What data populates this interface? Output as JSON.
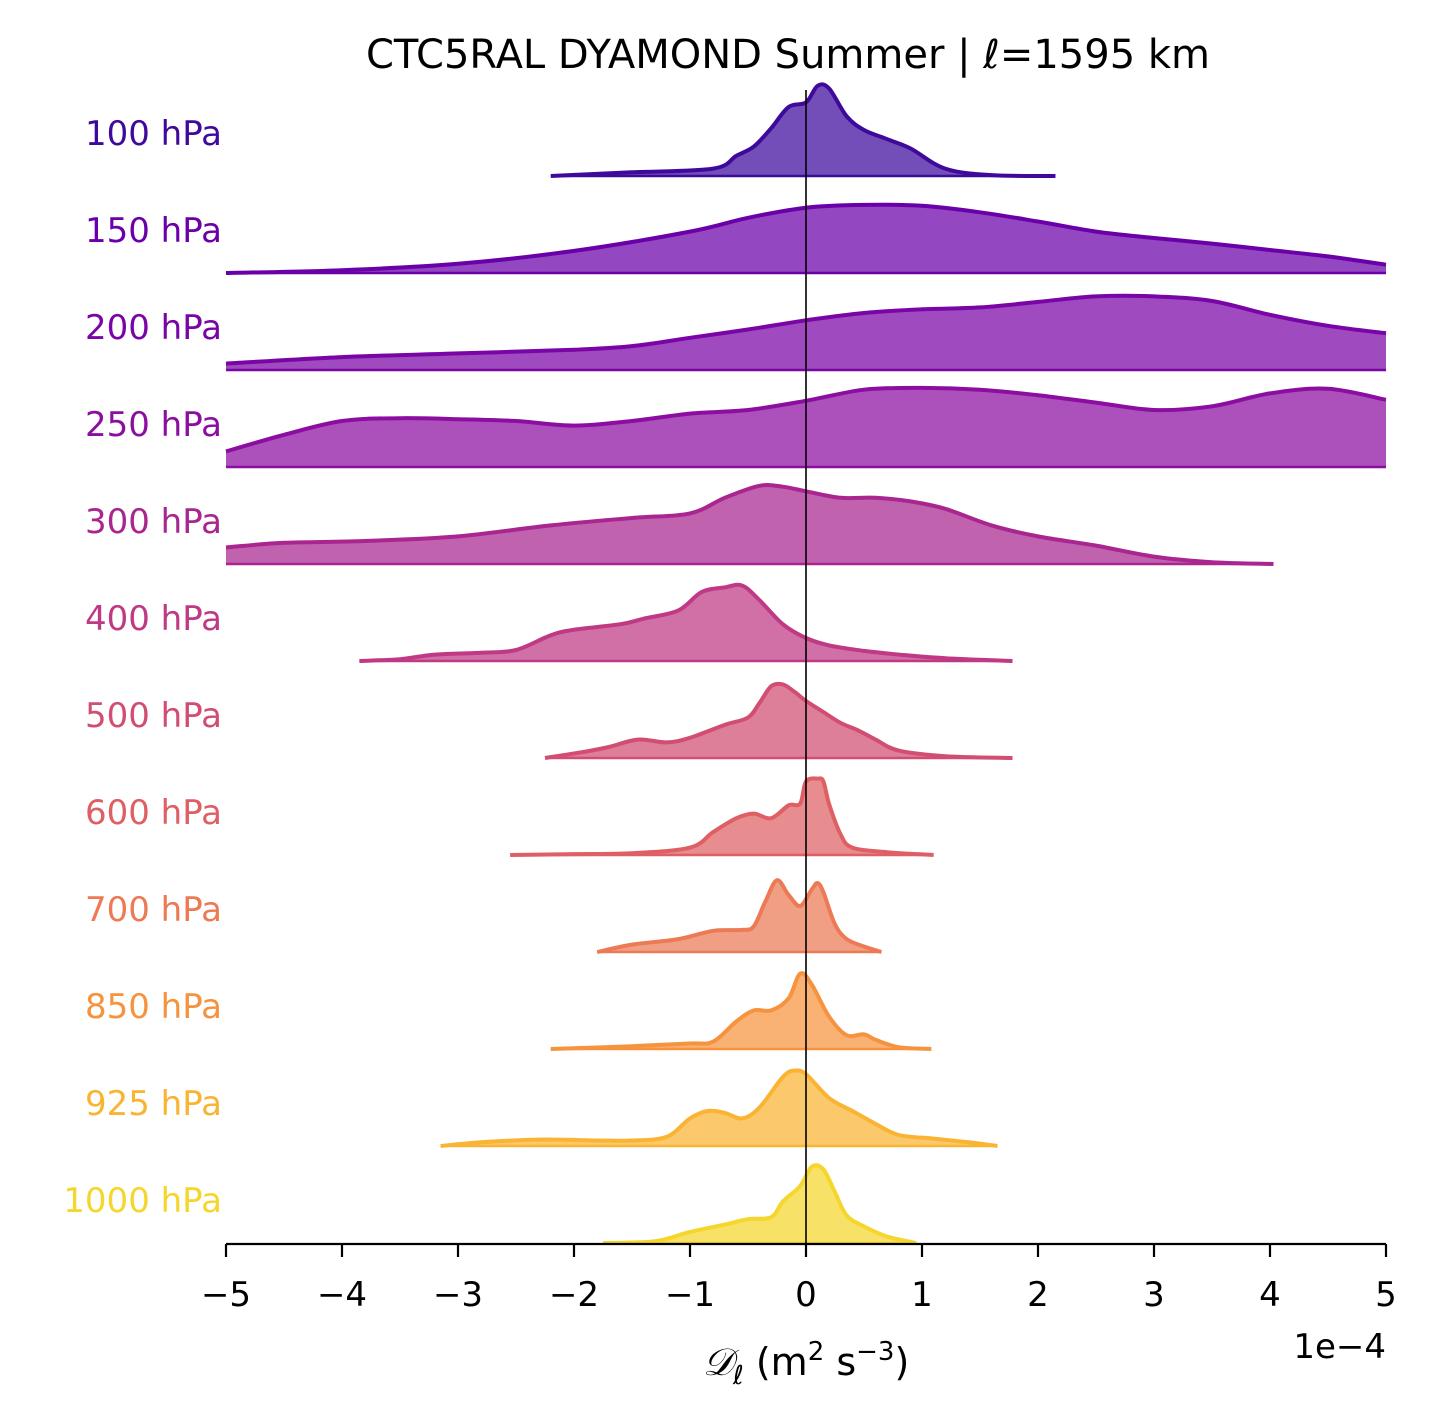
{
  "chart_data": {
    "type": "ridgeline",
    "title": "CTC5RAL DYAMOND Summer | ℓ=1595 km",
    "xlabel": {
      "symbol": "𝒟",
      "subscript": "ℓ",
      "units_base": " (m",
      "sup1": "2",
      "units_mid": " s",
      "sup2": "−3",
      "units_end": ")"
    },
    "x_offset_label": "1e−4",
    "xlim": [
      -5,
      5
    ],
    "x_ticks": [
      -5,
      -4,
      -3,
      -2,
      -1,
      0,
      1,
      2,
      3,
      4,
      5
    ],
    "x_tick_labels": [
      "−5",
      "−4",
      "−3",
      "−2",
      "−1",
      "0",
      "1",
      "2",
      "3",
      "4",
      "5"
    ],
    "reference_line_x": 0,
    "density_scale": "relative (0-1)",
    "series": [
      {
        "name": "100 hPa",
        "color": "#3f0a9c",
        "points": [
          [
            -2.2,
            0
          ],
          [
            -1.5,
            0.04
          ],
          [
            -0.8,
            0.08
          ],
          [
            -0.6,
            0.22
          ],
          [
            -0.45,
            0.32
          ],
          [
            -0.3,
            0.52
          ],
          [
            -0.15,
            0.75
          ],
          [
            0,
            0.8
          ],
          [
            0.1,
            0.98
          ],
          [
            0.2,
            0.95
          ],
          [
            0.35,
            0.65
          ],
          [
            0.5,
            0.5
          ],
          [
            0.7,
            0.4
          ],
          [
            0.9,
            0.3
          ],
          [
            1.2,
            0.08
          ],
          [
            1.6,
            0.01
          ],
          [
            2.15,
            0
          ]
        ]
      },
      {
        "name": "150 hPa",
        "color": "#6a00a8",
        "points": [
          [
            -5,
            0
          ],
          [
            -4,
            0.03
          ],
          [
            -3,
            0.1
          ],
          [
            -2,
            0.24
          ],
          [
            -1,
            0.45
          ],
          [
            -0.5,
            0.6
          ],
          [
            0,
            0.71
          ],
          [
            0.5,
            0.74
          ],
          [
            1,
            0.73
          ],
          [
            1.5,
            0.66
          ],
          [
            2,
            0.56
          ],
          [
            2.5,
            0.45
          ],
          [
            3,
            0.38
          ],
          [
            3.5,
            0.32
          ],
          [
            4,
            0.25
          ],
          [
            4.5,
            0.18
          ],
          [
            5,
            0.09
          ]
        ]
      },
      {
        "name": "200 hPa",
        "color": "#7a05a6",
        "points": [
          [
            -5,
            0.07
          ],
          [
            -4,
            0.14
          ],
          [
            -3,
            0.18
          ],
          [
            -2,
            0.22
          ],
          [
            -1.5,
            0.26
          ],
          [
            -1,
            0.35
          ],
          [
            -0.5,
            0.44
          ],
          [
            0,
            0.54
          ],
          [
            0.5,
            0.62
          ],
          [
            1,
            0.66
          ],
          [
            1.5,
            0.68
          ],
          [
            2,
            0.74
          ],
          [
            2.5,
            0.8
          ],
          [
            3,
            0.8
          ],
          [
            3.5,
            0.75
          ],
          [
            4,
            0.6
          ],
          [
            4.5,
            0.48
          ],
          [
            5,
            0.4
          ]
        ]
      },
      {
        "name": "250 hPa",
        "color": "#8c0ea1",
        "points": [
          [
            -5,
            0.17
          ],
          [
            -4.5,
            0.35
          ],
          [
            -4,
            0.5
          ],
          [
            -3.5,
            0.53
          ],
          [
            -3,
            0.52
          ],
          [
            -2.5,
            0.5
          ],
          [
            -2,
            0.45
          ],
          [
            -1.5,
            0.5
          ],
          [
            -1,
            0.58
          ],
          [
            -0.5,
            0.62
          ],
          [
            0,
            0.72
          ],
          [
            0.5,
            0.84
          ],
          [
            1,
            0.86
          ],
          [
            1.5,
            0.84
          ],
          [
            2,
            0.78
          ],
          [
            2.5,
            0.7
          ],
          [
            3,
            0.62
          ],
          [
            3.5,
            0.66
          ],
          [
            4,
            0.8
          ],
          [
            4.5,
            0.85
          ],
          [
            5,
            0.73
          ]
        ]
      },
      {
        "name": "300 hPa",
        "color": "#a9258f",
        "points": [
          [
            -5,
            0.18
          ],
          [
            -4.5,
            0.23
          ],
          [
            -3.8,
            0.25
          ],
          [
            -3,
            0.3
          ],
          [
            -2.2,
            0.42
          ],
          [
            -1.5,
            0.5
          ],
          [
            -1,
            0.55
          ],
          [
            -0.7,
            0.72
          ],
          [
            -0.4,
            0.85
          ],
          [
            -0.2,
            0.84
          ],
          [
            0,
            0.79
          ],
          [
            0.3,
            0.72
          ],
          [
            0.6,
            0.72
          ],
          [
            0.9,
            0.68
          ],
          [
            1.2,
            0.6
          ],
          [
            1.6,
            0.42
          ],
          [
            2,
            0.3
          ],
          [
            2.5,
            0.2
          ],
          [
            3,
            0.08
          ],
          [
            3.5,
            0.02
          ],
          [
            4.03,
            0
          ]
        ]
      },
      {
        "name": "400 hPa",
        "color": "#bf3984",
        "points": [
          [
            -3.85,
            0
          ],
          [
            -3.5,
            0.02
          ],
          [
            -3.2,
            0.07
          ],
          [
            -2.8,
            0.09
          ],
          [
            -2.5,
            0.12
          ],
          [
            -2.2,
            0.28
          ],
          [
            -2,
            0.34
          ],
          [
            -1.6,
            0.4
          ],
          [
            -1.4,
            0.46
          ],
          [
            -1.1,
            0.55
          ],
          [
            -0.9,
            0.75
          ],
          [
            -0.7,
            0.8
          ],
          [
            -0.55,
            0.82
          ],
          [
            -0.4,
            0.66
          ],
          [
            -0.2,
            0.4
          ],
          [
            0,
            0.25
          ],
          [
            0.2,
            0.17
          ],
          [
            0.5,
            0.11
          ],
          [
            0.8,
            0.07
          ],
          [
            1.2,
            0.03
          ],
          [
            1.78,
            0
          ]
        ]
      },
      {
        "name": "500 hPa",
        "color": "#d14e72",
        "points": [
          [
            -2.25,
            0
          ],
          [
            -1.9,
            0.07
          ],
          [
            -1.7,
            0.12
          ],
          [
            -1.45,
            0.2
          ],
          [
            -1.2,
            0.17
          ],
          [
            -1,
            0.22
          ],
          [
            -0.7,
            0.36
          ],
          [
            -0.5,
            0.44
          ],
          [
            -0.4,
            0.6
          ],
          [
            -0.3,
            0.78
          ],
          [
            -0.2,
            0.8
          ],
          [
            -0.1,
            0.72
          ],
          [
            0,
            0.62
          ],
          [
            0.15,
            0.5
          ],
          [
            0.3,
            0.38
          ],
          [
            0.45,
            0.3
          ],
          [
            0.6,
            0.2
          ],
          [
            0.8,
            0.08
          ],
          [
            1.2,
            0.02
          ],
          [
            1.78,
            0
          ]
        ]
      },
      {
        "name": "600 hPa",
        "color": "#de5f64",
        "points": [
          [
            -2.55,
            0
          ],
          [
            -2,
            0.01
          ],
          [
            -1.5,
            0.02
          ],
          [
            -1,
            0.08
          ],
          [
            -0.8,
            0.25
          ],
          [
            -0.6,
            0.4
          ],
          [
            -0.45,
            0.45
          ],
          [
            -0.3,
            0.4
          ],
          [
            -0.15,
            0.54
          ],
          [
            -0.05,
            0.56
          ],
          [
            0,
            0.8
          ],
          [
            0.1,
            0.83
          ],
          [
            0.15,
            0.8
          ],
          [
            0.2,
            0.55
          ],
          [
            0.3,
            0.22
          ],
          [
            0.4,
            0.08
          ],
          [
            0.7,
            0.03
          ],
          [
            1.1,
            0
          ]
        ]
      },
      {
        "name": "700 hPa",
        "color": "#ec7a55",
        "points": [
          [
            -1.8,
            0
          ],
          [
            -1.5,
            0.08
          ],
          [
            -1.1,
            0.14
          ],
          [
            -0.8,
            0.23
          ],
          [
            -0.55,
            0.24
          ],
          [
            -0.45,
            0.28
          ],
          [
            -0.35,
            0.55
          ],
          [
            -0.25,
            0.78
          ],
          [
            -0.15,
            0.62
          ],
          [
            -0.05,
            0.5
          ],
          [
            0.05,
            0.68
          ],
          [
            0.1,
            0.75
          ],
          [
            0.15,
            0.65
          ],
          [
            0.25,
            0.3
          ],
          [
            0.35,
            0.14
          ],
          [
            0.5,
            0.06
          ],
          [
            0.65,
            0
          ]
        ]
      },
      {
        "name": "850 hPa",
        "color": "#f6933f",
        "points": [
          [
            -2.2,
            0
          ],
          [
            -1.5,
            0.03
          ],
          [
            -1,
            0.06
          ],
          [
            -0.8,
            0.08
          ],
          [
            -0.6,
            0.3
          ],
          [
            -0.45,
            0.42
          ],
          [
            -0.3,
            0.42
          ],
          [
            -0.15,
            0.55
          ],
          [
            -0.05,
            0.82
          ],
          [
            0.05,
            0.7
          ],
          [
            0.2,
            0.35
          ],
          [
            0.35,
            0.15
          ],
          [
            0.5,
            0.16
          ],
          [
            0.6,
            0.1
          ],
          [
            0.8,
            0.02
          ],
          [
            1.08,
            0
          ]
        ]
      },
      {
        "name": "925 hPa",
        "color": "#fab433",
        "points": [
          [
            -3.15,
            0
          ],
          [
            -2.8,
            0.04
          ],
          [
            -2.3,
            0.07
          ],
          [
            -1.8,
            0.06
          ],
          [
            -1.5,
            0.06
          ],
          [
            -1.2,
            0.1
          ],
          [
            -1,
            0.3
          ],
          [
            -0.85,
            0.38
          ],
          [
            -0.7,
            0.36
          ],
          [
            -0.55,
            0.3
          ],
          [
            -0.4,
            0.42
          ],
          [
            -0.2,
            0.75
          ],
          [
            -0.1,
            0.82
          ],
          [
            0,
            0.78
          ],
          [
            0.2,
            0.52
          ],
          [
            0.4,
            0.38
          ],
          [
            0.6,
            0.24
          ],
          [
            0.8,
            0.12
          ],
          [
            1.1,
            0.08
          ],
          [
            1.4,
            0.04
          ],
          [
            1.65,
            0
          ]
        ]
      },
      {
        "name": "1000 hPa",
        "color": "#f5d62c",
        "points": [
          [
            -1.75,
            0
          ],
          [
            -1.3,
            0.02
          ],
          [
            -1,
            0.12
          ],
          [
            -0.7,
            0.2
          ],
          [
            -0.5,
            0.26
          ],
          [
            -0.3,
            0.28
          ],
          [
            -0.2,
            0.45
          ],
          [
            -0.05,
            0.62
          ],
          [
            0.05,
            0.83
          ],
          [
            0.15,
            0.8
          ],
          [
            0.25,
            0.55
          ],
          [
            0.35,
            0.3
          ],
          [
            0.5,
            0.18
          ],
          [
            0.7,
            0.07
          ],
          [
            0.95,
            0
          ]
        ]
      }
    ]
  }
}
